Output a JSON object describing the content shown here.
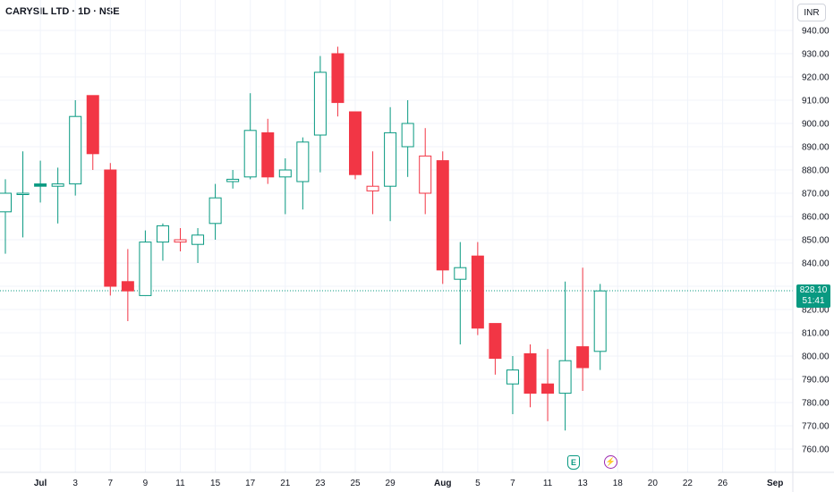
{
  "header": {
    "title": "CARYSIL LTD · 1D · NSE",
    "currency": "INR"
  },
  "price_label": {
    "price": "828.10",
    "countdown": "51:41",
    "color": "#089981"
  },
  "events": {
    "earnings_letter": "E",
    "dividend_symbol": "⚡"
  },
  "colors": {
    "up": "#089981",
    "down": "#f23645",
    "grid": "#f0f3fa",
    "axis_text": "#131722"
  },
  "chart_data": {
    "type": "candlestick",
    "ylim": [
      755,
      945
    ],
    "y_ticks": [
      760,
      770,
      780,
      790,
      800,
      810,
      820,
      830,
      840,
      850,
      860,
      870,
      880,
      890,
      900,
      910,
      920,
      930,
      940
    ],
    "y_tick_labels": [
      "760.00",
      "770.00",
      "780.00",
      "790.00",
      "800.00",
      "810.00",
      "820.00",
      "830.00",
      "840.00",
      "850.00",
      "860.00",
      "870.00",
      "880.00",
      "890.00",
      "900.00",
      "910.00",
      "920.00",
      "930.00",
      "940.00"
    ],
    "x_tick_labels": [
      {
        "label": "Jul",
        "slot": 2,
        "bold": true
      },
      {
        "label": "3",
        "slot": 4
      },
      {
        "label": "7",
        "slot": 6
      },
      {
        "label": "9",
        "slot": 8
      },
      {
        "label": "11",
        "slot": 10
      },
      {
        "label": "15",
        "slot": 12
      },
      {
        "label": "17",
        "slot": 14
      },
      {
        "label": "21",
        "slot": 16
      },
      {
        "label": "23",
        "slot": 18
      },
      {
        "label": "25",
        "slot": 20
      },
      {
        "label": "29",
        "slot": 22
      },
      {
        "label": "Aug",
        "slot": 25,
        "bold": true
      },
      {
        "label": "5",
        "slot": 27
      },
      {
        "label": "7",
        "slot": 29
      },
      {
        "label": "11",
        "slot": 31
      },
      {
        "label": "13",
        "slot": 33
      },
      {
        "label": "18",
        "slot": 35
      },
      {
        "label": "20",
        "slot": 37
      },
      {
        "label": "22",
        "slot": 39
      },
      {
        "label": "26",
        "slot": 41
      },
      {
        "label": "Sep",
        "slot": 44,
        "bold": true
      }
    ],
    "candles": [
      {
        "o": 862,
        "h": 876,
        "l": 844,
        "c": 870,
        "solid": false
      },
      {
        "o": 870,
        "h": 888,
        "l": 851,
        "c": 870,
        "solid": false
      },
      {
        "o": 873,
        "h": 884,
        "l": 866,
        "c": 874,
        "solid": true
      },
      {
        "o": 873,
        "h": 881,
        "l": 857,
        "c": 874,
        "solid": false
      },
      {
        "o": 874,
        "h": 910,
        "l": 869,
        "c": 903,
        "solid": false
      },
      {
        "o": 912,
        "h": 912,
        "l": 880,
        "c": 887,
        "solid": true
      },
      {
        "o": 880,
        "h": 883,
        "l": 826,
        "c": 830,
        "solid": true
      },
      {
        "o": 832,
        "h": 846,
        "l": 815,
        "c": 828,
        "solid": true
      },
      {
        "o": 826,
        "h": 854,
        "l": 826,
        "c": 849,
        "solid": false
      },
      {
        "o": 849,
        "h": 857,
        "l": 841,
        "c": 856,
        "solid": false
      },
      {
        "o": 850,
        "h": 855,
        "l": 845,
        "c": 849,
        "solid": false
      },
      {
        "o": 848,
        "h": 855,
        "l": 840,
        "c": 852,
        "solid": false
      },
      {
        "o": 857,
        "h": 874,
        "l": 850,
        "c": 868,
        "solid": false
      },
      {
        "o": 875,
        "h": 880,
        "l": 872,
        "c": 876,
        "solid": false
      },
      {
        "o": 877,
        "h": 913,
        "l": 876,
        "c": 897,
        "solid": false
      },
      {
        "o": 896,
        "h": 902,
        "l": 874,
        "c": 877,
        "solid": true
      },
      {
        "o": 877,
        "h": 885,
        "l": 861,
        "c": 880,
        "solid": false
      },
      {
        "o": 875,
        "h": 894,
        "l": 863,
        "c": 892,
        "solid": false
      },
      {
        "o": 895,
        "h": 929,
        "l": 879,
        "c": 922,
        "solid": false
      },
      {
        "o": 930,
        "h": 933,
        "l": 903,
        "c": 909,
        "solid": true
      },
      {
        "o": 905,
        "h": 905,
        "l": 876,
        "c": 878,
        "solid": true
      },
      {
        "o": 873,
        "h": 888,
        "l": 861,
        "c": 871,
        "solid": false
      },
      {
        "o": 873,
        "h": 907,
        "l": 858,
        "c": 896,
        "solid": false
      },
      {
        "o": 890,
        "h": 910,
        "l": 877,
        "c": 900,
        "solid": false
      },
      {
        "o": 886,
        "h": 898,
        "l": 861,
        "c": 870,
        "solid": false
      },
      {
        "o": 884,
        "h": 888,
        "l": 831,
        "c": 837,
        "solid": true
      },
      {
        "o": 833,
        "h": 849,
        "l": 805,
        "c": 838,
        "solid": false
      },
      {
        "o": 843,
        "h": 849,
        "l": 809,
        "c": 812,
        "solid": true
      },
      {
        "o": 814,
        "h": 814,
        "l": 792,
        "c": 799,
        "solid": true
      },
      {
        "o": 788,
        "h": 800,
        "l": 775,
        "c": 794,
        "solid": false
      },
      {
        "o": 801,
        "h": 805,
        "l": 778,
        "c": 784,
        "solid": true
      },
      {
        "o": 788,
        "h": 803,
        "l": 772,
        "c": 784,
        "solid": true
      },
      {
        "o": 784,
        "h": 832,
        "l": 768,
        "c": 798,
        "solid": false
      },
      {
        "o": 804,
        "h": 838,
        "l": 785,
        "c": 795,
        "solid": true
      },
      {
        "o": 802,
        "h": 831,
        "l": 794,
        "c": 828,
        "solid": false
      }
    ],
    "last_price": 828.1
  }
}
